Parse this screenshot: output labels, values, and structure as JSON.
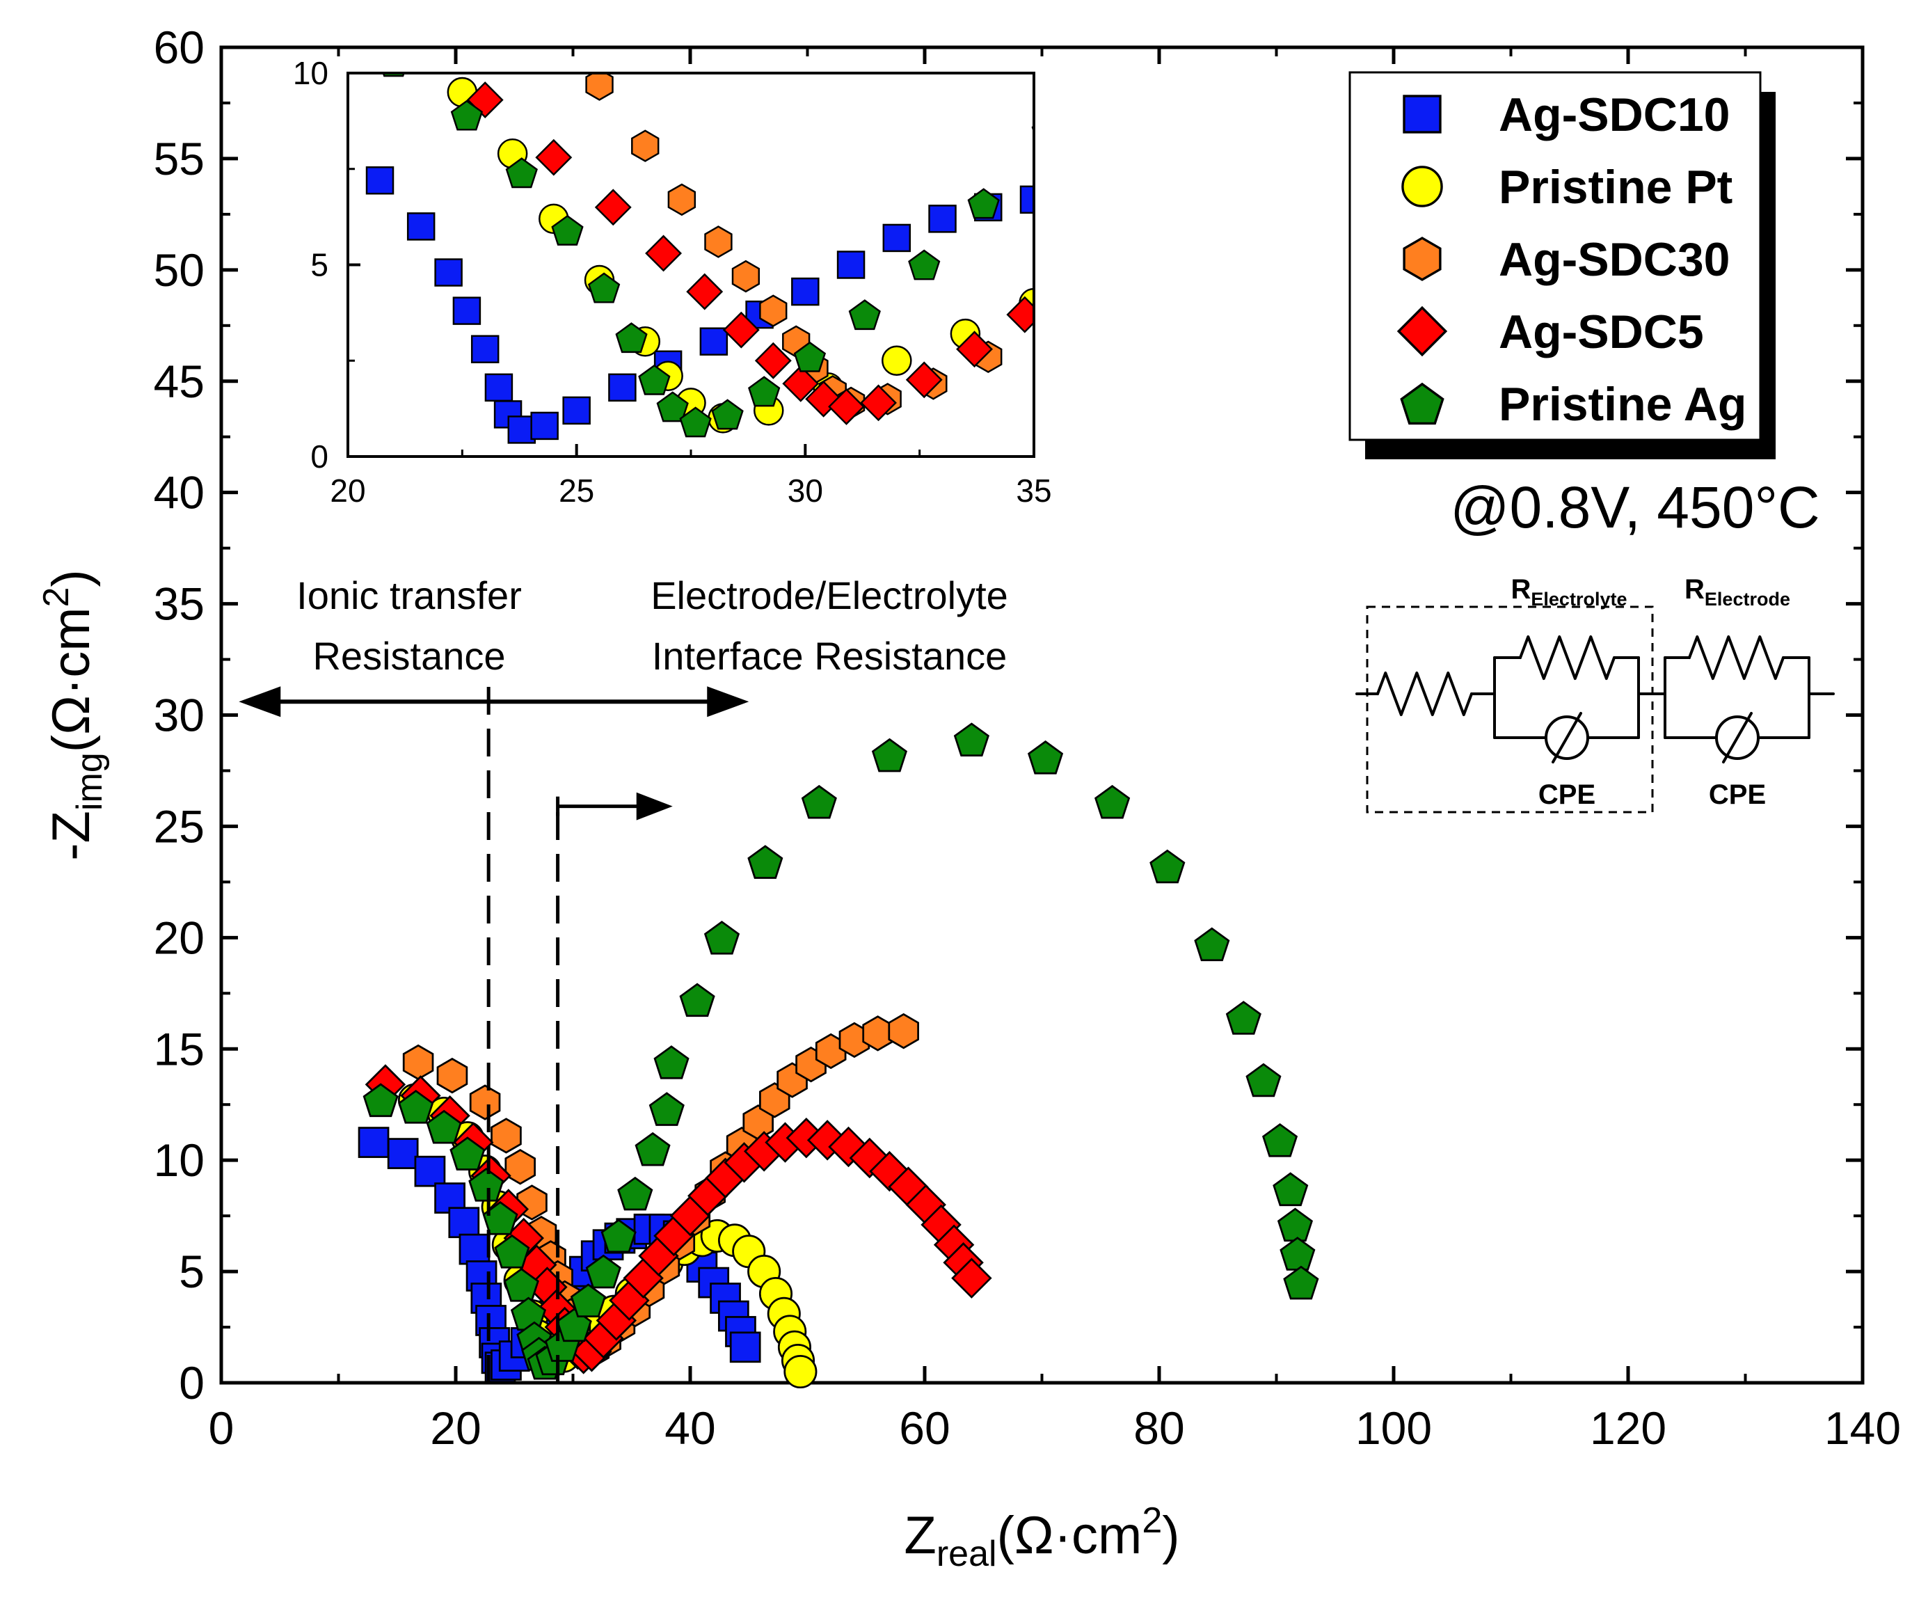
{
  "chart_data": {
    "type": "scatter",
    "title": "",
    "condition": "@0.8V, 450°C",
    "xlabel": {
      "main": "Z",
      "sub": "real",
      "unit": "(Ω·cm",
      "sup": "2",
      "close": ")"
    },
    "ylabel": {
      "main": "-Z",
      "sub": "img",
      "unit": "(Ω·cm",
      "sup": "2",
      "close": ")"
    },
    "xlim": [
      0,
      140
    ],
    "ylim": [
      0,
      60
    ],
    "x_ticks": [
      0,
      20,
      40,
      60,
      80,
      100,
      120,
      140
    ],
    "y_ticks": [
      0,
      5,
      10,
      15,
      20,
      25,
      30,
      35,
      40,
      45,
      50,
      55,
      60
    ],
    "legend_position": "top-right",
    "series": [
      {
        "name": "Ag-SDC10",
        "marker": "square",
        "color": "#0a1cf5",
        "points": [
          [
            13.0,
            10.8
          ],
          [
            15.5,
            10.3
          ],
          [
            17.8,
            9.5
          ],
          [
            19.5,
            8.3
          ],
          [
            20.7,
            7.2
          ],
          [
            21.6,
            6.0
          ],
          [
            22.2,
            4.8
          ],
          [
            22.6,
            3.8
          ],
          [
            23.0,
            2.8
          ],
          [
            23.3,
            1.8
          ],
          [
            23.5,
            1.1
          ],
          [
            23.8,
            0.7
          ],
          [
            24.3,
            0.8
          ],
          [
            25.0,
            1.2
          ],
          [
            26.0,
            1.8
          ],
          [
            27.0,
            2.4
          ],
          [
            28.0,
            3.0
          ],
          [
            29.0,
            3.7
          ],
          [
            30.0,
            4.3
          ],
          [
            31.0,
            5.0
          ],
          [
            32.0,
            5.7
          ],
          [
            33.0,
            6.2
          ],
          [
            34.0,
            6.5
          ],
          [
            35.0,
            6.7
          ],
          [
            36.5,
            6.9
          ],
          [
            37.8,
            6.9
          ],
          [
            39.0,
            6.6
          ],
          [
            40.0,
            6.0
          ],
          [
            41.0,
            5.2
          ],
          [
            42.0,
            4.5
          ],
          [
            43.0,
            3.8
          ],
          [
            43.7,
            3.0
          ],
          [
            44.3,
            2.3
          ],
          [
            44.7,
            1.6
          ]
        ]
      },
      {
        "name": "Pristine Pt",
        "marker": "circle",
        "color": "#ffff00",
        "points": [
          [
            16.5,
            12.7
          ],
          [
            19.0,
            12.1
          ],
          [
            21.0,
            11.0
          ],
          [
            22.5,
            9.5
          ],
          [
            23.6,
            7.9
          ],
          [
            24.5,
            6.2
          ],
          [
            25.5,
            4.6
          ],
          [
            26.5,
            3.0
          ],
          [
            27.0,
            2.1
          ],
          [
            27.5,
            1.4
          ],
          [
            28.2,
            1.0
          ],
          [
            29.2,
            1.2
          ],
          [
            30.5,
            1.8
          ],
          [
            32.0,
            2.5
          ],
          [
            33.5,
            3.2
          ],
          [
            35.0,
            4.0
          ],
          [
            36.5,
            4.7
          ],
          [
            38.0,
            5.4
          ],
          [
            39.5,
            6.0
          ],
          [
            41.0,
            6.4
          ],
          [
            42.3,
            6.6
          ],
          [
            43.8,
            6.4
          ],
          [
            45.0,
            5.9
          ],
          [
            46.3,
            5.0
          ],
          [
            47.3,
            4.0
          ],
          [
            48.0,
            3.1
          ],
          [
            48.5,
            2.3
          ],
          [
            48.9,
            1.6
          ],
          [
            49.2,
            1.0
          ],
          [
            49.4,
            0.5
          ]
        ]
      },
      {
        "name": "Ag-SDC30",
        "marker": "hexagon",
        "color": "#ff7f1f",
        "points": [
          [
            16.8,
            14.4
          ],
          [
            19.7,
            13.8
          ],
          [
            22.5,
            12.6
          ],
          [
            24.3,
            11.1
          ],
          [
            25.5,
            9.7
          ],
          [
            26.5,
            8.1
          ],
          [
            27.3,
            6.7
          ],
          [
            28.1,
            5.6
          ],
          [
            28.7,
            4.7
          ],
          [
            29.3,
            3.8
          ],
          [
            29.8,
            3.0
          ],
          [
            30.2,
            2.3
          ],
          [
            30.6,
            1.7
          ],
          [
            31.0,
            1.4
          ],
          [
            31.8,
            1.5
          ],
          [
            32.8,
            1.9
          ],
          [
            34.0,
            2.6
          ],
          [
            35.3,
            3.3
          ],
          [
            36.5,
            4.2
          ],
          [
            37.8,
            5.2
          ],
          [
            39.1,
            6.3
          ],
          [
            40.4,
            7.4
          ],
          [
            41.7,
            8.5
          ],
          [
            43.0,
            9.6
          ],
          [
            44.4,
            10.7
          ],
          [
            45.8,
            11.7
          ],
          [
            47.2,
            12.7
          ],
          [
            48.7,
            13.6
          ],
          [
            50.3,
            14.3
          ],
          [
            52.0,
            14.9
          ],
          [
            54.0,
            15.4
          ],
          [
            56.0,
            15.7
          ],
          [
            58.2,
            15.8
          ]
        ]
      },
      {
        "name": "Ag-SDC5",
        "marker": "diamond",
        "color": "#ff0000",
        "points": [
          [
            14.0,
            13.4
          ],
          [
            17.0,
            12.9
          ],
          [
            19.5,
            12.0
          ],
          [
            21.5,
            10.8
          ],
          [
            23.0,
            9.3
          ],
          [
            24.5,
            7.8
          ],
          [
            25.8,
            6.5
          ],
          [
            26.9,
            5.3
          ],
          [
            27.8,
            4.3
          ],
          [
            28.6,
            3.3
          ],
          [
            29.3,
            2.5
          ],
          [
            29.9,
            1.9
          ],
          [
            30.4,
            1.5
          ],
          [
            30.9,
            1.3
          ],
          [
            31.6,
            1.4
          ],
          [
            32.6,
            2.0
          ],
          [
            33.7,
            2.8
          ],
          [
            34.8,
            3.7
          ],
          [
            36.0,
            4.7
          ],
          [
            37.3,
            5.7
          ],
          [
            38.6,
            6.6
          ],
          [
            40.0,
            7.5
          ],
          [
            41.5,
            8.4
          ],
          [
            43.0,
            9.2
          ],
          [
            44.6,
            9.9
          ],
          [
            46.3,
            10.4
          ],
          [
            48.1,
            10.8
          ],
          [
            49.9,
            11.0
          ],
          [
            51.7,
            10.9
          ],
          [
            53.5,
            10.6
          ],
          [
            55.3,
            10.1
          ],
          [
            57.0,
            9.5
          ],
          [
            58.6,
            8.8
          ],
          [
            60.1,
            8.0
          ],
          [
            61.4,
            7.1
          ],
          [
            62.5,
            6.2
          ],
          [
            63.3,
            5.4
          ],
          [
            64.0,
            4.7
          ]
        ]
      },
      {
        "name": "Pristine Ag",
        "marker": "pentagon",
        "color": "#0a8a0a",
        "points": [
          [
            13.6,
            12.7
          ],
          [
            16.6,
            12.4
          ],
          [
            19.0,
            11.5
          ],
          [
            21.0,
            10.3
          ],
          [
            22.6,
            8.9
          ],
          [
            23.8,
            7.4
          ],
          [
            24.8,
            5.9
          ],
          [
            25.6,
            4.4
          ],
          [
            26.2,
            3.1
          ],
          [
            26.7,
            2.0
          ],
          [
            27.1,
            1.3
          ],
          [
            27.6,
            0.9
          ],
          [
            28.3,
            1.1
          ],
          [
            29.1,
            1.7
          ],
          [
            30.1,
            2.6
          ],
          [
            31.3,
            3.7
          ],
          [
            32.6,
            5.0
          ],
          [
            33.9,
            6.6
          ],
          [
            35.3,
            8.5
          ],
          [
            36.8,
            10.5
          ],
          [
            38.0,
            12.3
          ],
          [
            38.4,
            14.4
          ],
          [
            40.6,
            17.2
          ],
          [
            42.7,
            20.0
          ],
          [
            46.4,
            23.4
          ],
          [
            51.0,
            26.1
          ],
          [
            57.0,
            28.2
          ],
          [
            64.0,
            28.9
          ],
          [
            70.3,
            28.1
          ],
          [
            76.0,
            26.1
          ],
          [
            80.7,
            23.2
          ],
          [
            84.5,
            19.7
          ],
          [
            87.2,
            16.4
          ],
          [
            88.9,
            13.6
          ],
          [
            90.3,
            10.9
          ],
          [
            91.2,
            8.7
          ],
          [
            91.6,
            7.1
          ],
          [
            91.8,
            5.8
          ],
          [
            92.1,
            4.5
          ]
        ]
      }
    ],
    "inset": {
      "xlim": [
        20,
        35
      ],
      "ylim": [
        0,
        10
      ],
      "x_ticks": [
        20,
        25,
        30,
        35
      ],
      "y_ticks": [
        0,
        5,
        10
      ]
    },
    "annotations": {
      "left_line1": "Ionic transfer",
      "left_line2": "Resistance",
      "right_line1": "Electrode/Electrolyte",
      "right_line2": "Interface Resistance",
      "dashed_x1": 22.8,
      "dashed_x2": 28.7,
      "double_arrow_from_x": 1.5,
      "double_arrow_to_x": 45.0,
      "double_arrow_y": 30.6,
      "small_arrow_from_x": 28.7,
      "small_arrow_to_x": 38.5,
      "small_arrow_y": 25.9
    },
    "circuit": {
      "r_main": "R",
      "r_electrolyte_sub": "Electrolyte",
      "r_electrode_sub": "Electrode",
      "cpe1": "CPE",
      "cpe2": "CPE"
    }
  }
}
